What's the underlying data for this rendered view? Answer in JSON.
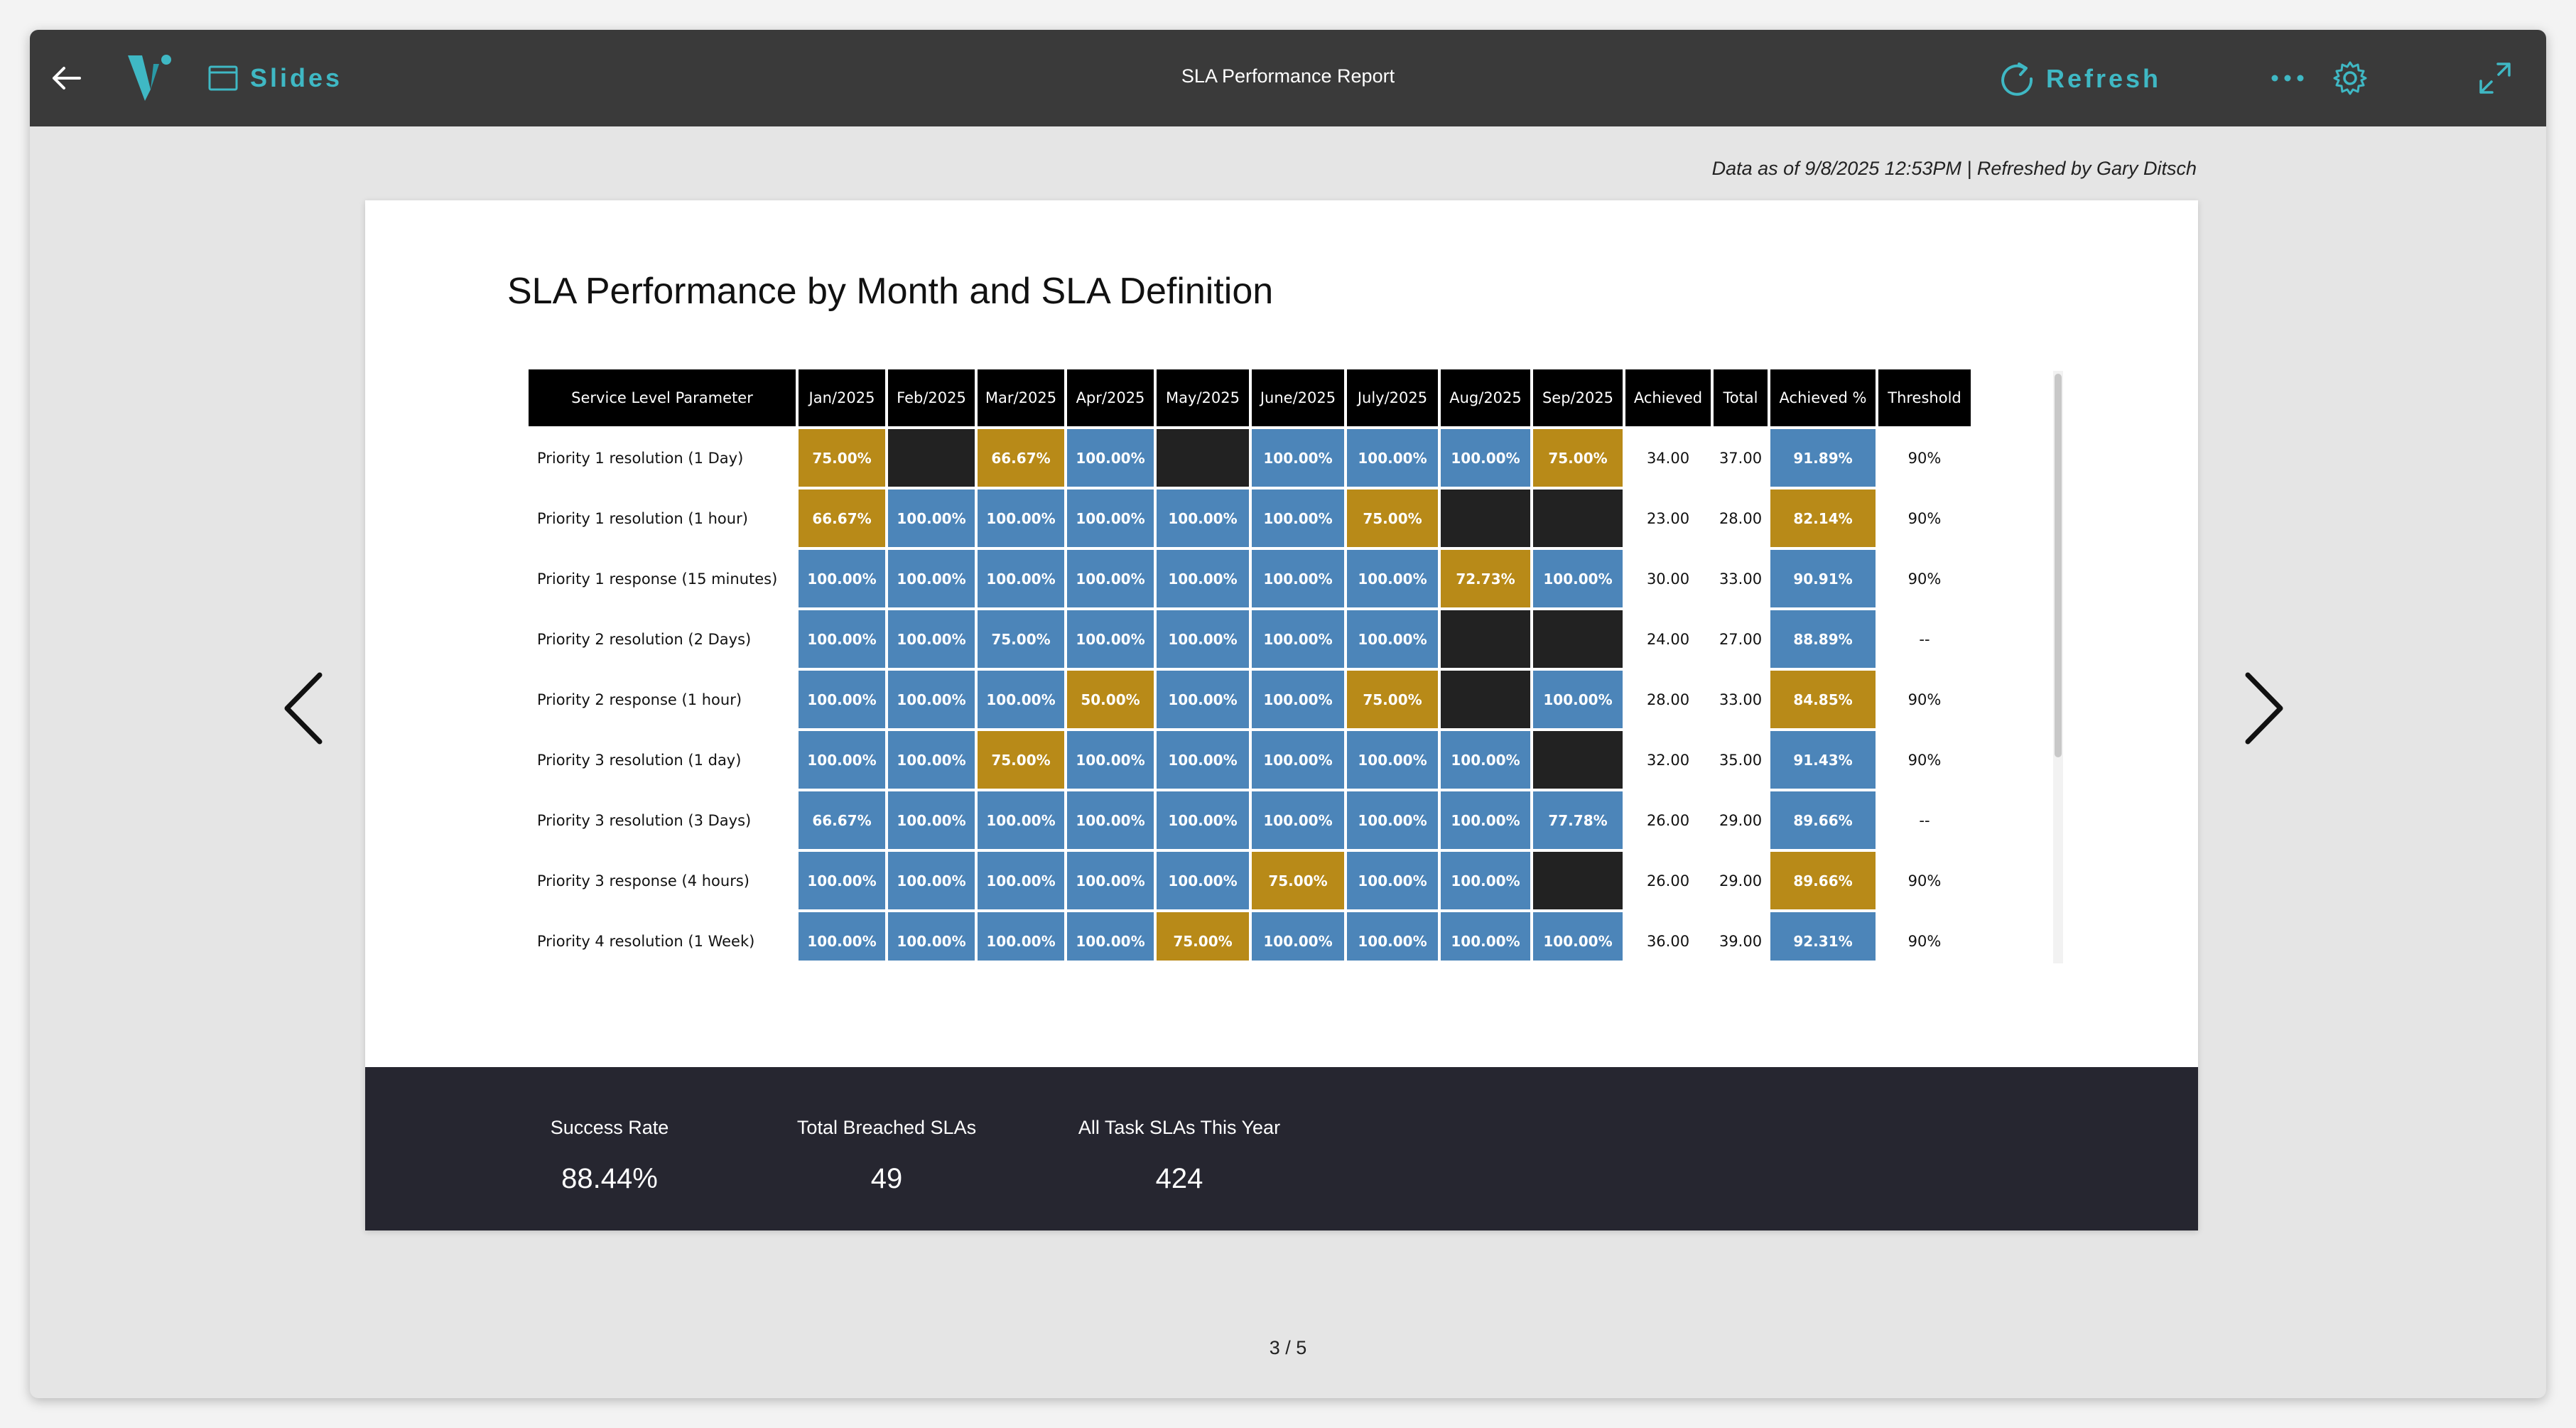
{
  "header": {
    "title": "SLA Performance Report",
    "slides_label": "Slides",
    "refresh_label": "Refresh"
  },
  "data_as_of": "Data as of 9/8/2025 12:53PM | Refreshed by Gary Ditsch",
  "slide": {
    "title": "SLA Performance by Month and SLA Definition"
  },
  "colors": {
    "met": "#4c85b9",
    "below": "#b88a18",
    "no_data": "#222222",
    "topbar": "#3a3a3a",
    "accent": "#3fb8c4"
  },
  "table": {
    "headers": [
      "Service Level Parameter",
      "Jan/2025",
      "Feb/2025",
      "Mar/2025",
      "Apr/2025",
      "May/2025",
      "June/2025",
      "July/2025",
      "Aug/2025",
      "Sep/2025",
      "Achieved",
      "Total",
      "Achieved %",
      "Threshold"
    ],
    "rows": [
      {
        "param": "Priority 1 resolution (1 Day)",
        "months": [
          [
            "75.00%",
            "gold"
          ],
          [
            "",
            "black"
          ],
          [
            "66.67%",
            "gold"
          ],
          [
            "100.00%",
            "blue"
          ],
          [
            "",
            "black"
          ],
          [
            "100.00%",
            "blue"
          ],
          [
            "100.00%",
            "blue"
          ],
          [
            "100.00%",
            "blue"
          ],
          [
            "75.00%",
            "gold"
          ]
        ],
        "achieved": "34.00",
        "total": "37.00",
        "pct": [
          "91.89%",
          "blue"
        ],
        "threshold": "90%"
      },
      {
        "param": "Priority 1 resolution (1 hour)",
        "months": [
          [
            "66.67%",
            "gold"
          ],
          [
            "100.00%",
            "blue"
          ],
          [
            "100.00%",
            "blue"
          ],
          [
            "100.00%",
            "blue"
          ],
          [
            "100.00%",
            "blue"
          ],
          [
            "100.00%",
            "blue"
          ],
          [
            "75.00%",
            "gold"
          ],
          [
            "",
            "black"
          ],
          [
            "",
            "black"
          ]
        ],
        "achieved": "23.00",
        "total": "28.00",
        "pct": [
          "82.14%",
          "gold"
        ],
        "threshold": "90%"
      },
      {
        "param": "Priority 1 response (15 minutes)",
        "months": [
          [
            "100.00%",
            "blue"
          ],
          [
            "100.00%",
            "blue"
          ],
          [
            "100.00%",
            "blue"
          ],
          [
            "100.00%",
            "blue"
          ],
          [
            "100.00%",
            "blue"
          ],
          [
            "100.00%",
            "blue"
          ],
          [
            "100.00%",
            "blue"
          ],
          [
            "72.73%",
            "gold"
          ],
          [
            "100.00%",
            "blue"
          ]
        ],
        "achieved": "30.00",
        "total": "33.00",
        "pct": [
          "90.91%",
          "blue"
        ],
        "threshold": "90%"
      },
      {
        "param": "Priority 2 resolution (2 Days)",
        "months": [
          [
            "100.00%",
            "blue"
          ],
          [
            "100.00%",
            "blue"
          ],
          [
            "75.00%",
            "blue"
          ],
          [
            "100.00%",
            "blue"
          ],
          [
            "100.00%",
            "blue"
          ],
          [
            "100.00%",
            "blue"
          ],
          [
            "100.00%",
            "blue"
          ],
          [
            "",
            "black"
          ],
          [
            "",
            "black"
          ]
        ],
        "achieved": "24.00",
        "total": "27.00",
        "pct": [
          "88.89%",
          "blue"
        ],
        "threshold": "--"
      },
      {
        "param": "Priority 2 response (1 hour)",
        "months": [
          [
            "100.00%",
            "blue"
          ],
          [
            "100.00%",
            "blue"
          ],
          [
            "100.00%",
            "blue"
          ],
          [
            "50.00%",
            "gold"
          ],
          [
            "100.00%",
            "blue"
          ],
          [
            "100.00%",
            "blue"
          ],
          [
            "75.00%",
            "gold"
          ],
          [
            "",
            "black"
          ],
          [
            "100.00%",
            "blue"
          ]
        ],
        "achieved": "28.00",
        "total": "33.00",
        "pct": [
          "84.85%",
          "gold"
        ],
        "threshold": "90%"
      },
      {
        "param": "Priority 3 resolution (1 day)",
        "months": [
          [
            "100.00%",
            "blue"
          ],
          [
            "100.00%",
            "blue"
          ],
          [
            "75.00%",
            "gold"
          ],
          [
            "100.00%",
            "blue"
          ],
          [
            "100.00%",
            "blue"
          ],
          [
            "100.00%",
            "blue"
          ],
          [
            "100.00%",
            "blue"
          ],
          [
            "100.00%",
            "blue"
          ],
          [
            "",
            "black"
          ]
        ],
        "achieved": "32.00",
        "total": "35.00",
        "pct": [
          "91.43%",
          "blue"
        ],
        "threshold": "90%"
      },
      {
        "param": "Priority 3 resolution (3 Days)",
        "months": [
          [
            "66.67%",
            "blue"
          ],
          [
            "100.00%",
            "blue"
          ],
          [
            "100.00%",
            "blue"
          ],
          [
            "100.00%",
            "blue"
          ],
          [
            "100.00%",
            "blue"
          ],
          [
            "100.00%",
            "blue"
          ],
          [
            "100.00%",
            "blue"
          ],
          [
            "100.00%",
            "blue"
          ],
          [
            "77.78%",
            "blue"
          ]
        ],
        "achieved": "26.00",
        "total": "29.00",
        "pct": [
          "89.66%",
          "blue"
        ],
        "threshold": "--"
      },
      {
        "param": "Priority 3 response (4 hours)",
        "months": [
          [
            "100.00%",
            "blue"
          ],
          [
            "100.00%",
            "blue"
          ],
          [
            "100.00%",
            "blue"
          ],
          [
            "100.00%",
            "blue"
          ],
          [
            "100.00%",
            "blue"
          ],
          [
            "75.00%",
            "gold"
          ],
          [
            "100.00%",
            "blue"
          ],
          [
            "100.00%",
            "blue"
          ],
          [
            "",
            "black"
          ]
        ],
        "achieved": "26.00",
        "total": "29.00",
        "pct": [
          "89.66%",
          "gold"
        ],
        "threshold": "90%"
      },
      {
        "param": "Priority 4 resolution (1 Week)",
        "months": [
          [
            "100.00%",
            "blue"
          ],
          [
            "100.00%",
            "blue"
          ],
          [
            "100.00%",
            "blue"
          ],
          [
            "100.00%",
            "blue"
          ],
          [
            "75.00%",
            "gold"
          ],
          [
            "100.00%",
            "blue"
          ],
          [
            "100.00%",
            "blue"
          ],
          [
            "100.00%",
            "blue"
          ],
          [
            "100.00%",
            "blue"
          ]
        ],
        "achieved": "36.00",
        "total": "39.00",
        "pct": [
          "92.31%",
          "blue"
        ],
        "threshold": "90%"
      }
    ]
  },
  "kpis": [
    {
      "label": "Success Rate",
      "value": "88.44%"
    },
    {
      "label": "Total Breached SLAs",
      "value": "49"
    },
    {
      "label": "All Task SLAs This Year",
      "value": "424"
    }
  ],
  "pager": "3 / 5",
  "icons": [
    "back-arrow-icon",
    "logo-icon",
    "slides-icon",
    "refresh-icon",
    "more-icon",
    "gear-icon",
    "expand-icon",
    "chevron-left-icon",
    "chevron-right-icon"
  ]
}
